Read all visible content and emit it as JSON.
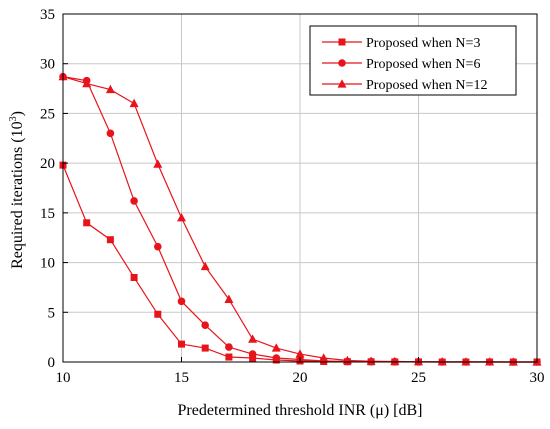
{
  "chart_data": {
    "type": "line",
    "title": "",
    "xlabel": "Predetermined threshold INR (μ) [dB]",
    "ylabel_main": "Required iterations (10",
    "ylabel_sup": "3",
    "ylabel_close": ")",
    "xlim": [
      10,
      30
    ],
    "ylim": [
      0,
      35
    ],
    "xticks": [
      10,
      15,
      20,
      25,
      30
    ],
    "yticks": [
      0,
      5,
      10,
      15,
      20,
      25,
      30,
      35
    ],
    "grid": true,
    "legend_position": "top-right",
    "line_color": "#e8141c",
    "x": [
      10,
      11,
      12,
      13,
      14,
      15,
      16,
      17,
      18,
      19,
      20,
      21,
      22,
      23,
      24,
      25,
      26,
      27,
      28,
      29,
      30
    ],
    "series": [
      {
        "name": "Proposed when N=3",
        "marker": "square",
        "values": [
          19.8,
          14.0,
          12.3,
          8.5,
          4.8,
          1.8,
          1.4,
          0.5,
          0.4,
          0.2,
          0.1,
          0.05,
          0.03,
          0.02,
          0.01,
          0.01,
          0.0,
          0.0,
          0.0,
          0.0,
          0.0
        ]
      },
      {
        "name": "Proposed when N=6",
        "marker": "circle",
        "values": [
          28.7,
          28.3,
          23.0,
          16.2,
          11.6,
          6.1,
          3.7,
          1.5,
          0.8,
          0.4,
          0.25,
          0.1,
          0.05,
          0.03,
          0.02,
          0.01,
          0.0,
          0.0,
          0.0,
          0.0,
          0.0
        ]
      },
      {
        "name": "Proposed when N=12",
        "marker": "triangle",
        "values": [
          28.7,
          28.0,
          27.4,
          26.0,
          19.9,
          14.5,
          9.6,
          6.3,
          2.3,
          1.4,
          0.8,
          0.4,
          0.15,
          0.08,
          0.05,
          0.03,
          0.02,
          0.01,
          0.01,
          0.0,
          0.0
        ]
      }
    ]
  }
}
